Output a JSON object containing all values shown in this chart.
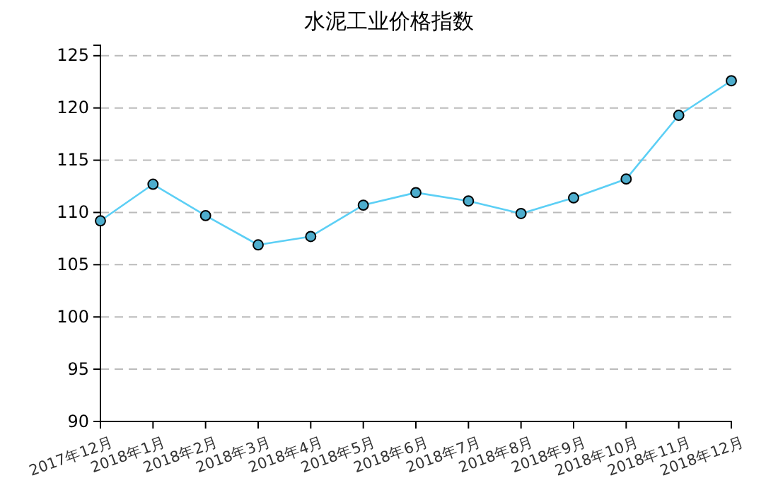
{
  "chart_data": {
    "type": "line",
    "title": "水泥工业价格指数",
    "categories": [
      "2017年12月",
      "2018年1月",
      "2018年2月",
      "2018年3月",
      "2018年4月",
      "2018年5月",
      "2018年6月",
      "2018年7月",
      "2018年8月",
      "2018年9月",
      "2018年10月",
      "2018年11月",
      "2018年12月"
    ],
    "series": [
      {
        "color": "#5ccff5",
        "values": [
          109.2,
          112.7,
          109.7,
          106.9,
          107.7,
          110.7,
          111.9,
          111.1,
          109.9,
          111.4,
          113.2,
          119.3,
          122.6
        ]
      }
    ],
    "ylim": [
      90,
      126
    ],
    "yticks": [
      90,
      95,
      100,
      105,
      110,
      115,
      120,
      125
    ],
    "grid": "y",
    "marker": "circle"
  }
}
